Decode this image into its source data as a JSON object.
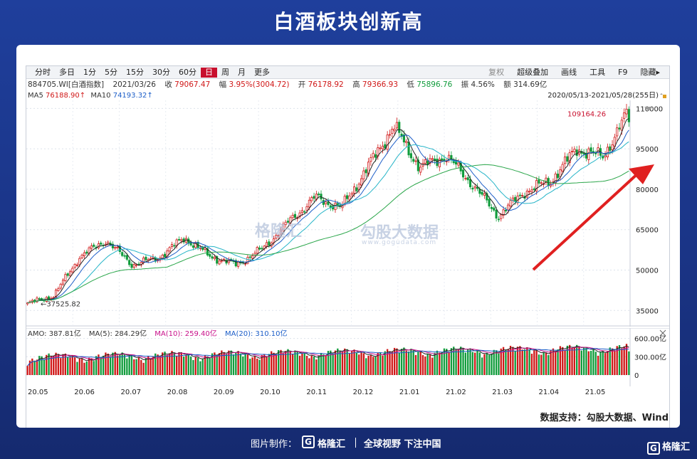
{
  "title": "白酒板块创新高",
  "toolbar": {
    "periods": [
      "分时",
      "多日",
      "1分",
      "5分",
      "15分",
      "30分",
      "60分",
      "日",
      "周",
      "月",
      "更多"
    ],
    "active_period": "日",
    "right_items": [
      "复权",
      "超级叠加",
      "画线",
      "工具",
      "F9",
      "隐藏"
    ]
  },
  "info": {
    "code": "884705.WI[白酒指数]",
    "date": "2021/03/26",
    "close_label": "收",
    "close": "79067.47",
    "change_label": "幅",
    "change": "3.95%(3004.72)",
    "open_label": "开",
    "open": "76178.92",
    "high_label": "高",
    "high": "79366.93",
    "low_label": "低",
    "low": "75896.76",
    "amp_label": "振",
    "amp": "4.56%",
    "amount_label": "额",
    "amount": "314.69亿"
  },
  "ma": {
    "ma5_label": "MA5",
    "ma5": "76188.90↑",
    "ma10_label": "MA10",
    "ma10": "74193.32↑"
  },
  "range": "2020/05/13-2021/05/28(255日)",
  "annotations": {
    "max": "109164.26",
    "min": "37525.82"
  },
  "volume_info": {
    "amo": "AMO: 387.81亿",
    "ma5": "MA(5): 284.29亿",
    "ma10": "MA(10): 259.40亿",
    "ma20": "MA(20): 310.10亿"
  },
  "watermarks": {
    "gelonghui": "格隆汇",
    "gogudata": "勾股大数据",
    "gogudata_url": "www.gogudata.com"
  },
  "source": "数据支持：勾股大数据、Wind",
  "footer": {
    "made_by": "图片制作：",
    "brand": "格隆汇",
    "slogan": "全球视野 下注中国",
    "logo_letter": "G"
  },
  "colors": {
    "up": "#d01818",
    "down": "#119c3c",
    "ma5": "#222222",
    "ma10": "#1c5ec8",
    "ma20": "#27b5c8",
    "ma60": "#2aa64a",
    "arrow": "#e02020"
  },
  "chart_data": {
    "type": "candlestick",
    "title": "",
    "y_ticks": [
      110000,
      95000,
      80000,
      65000,
      50000,
      35000
    ],
    "ylim": [
      29000,
      113000
    ],
    "x_ticks": [
      "20.05",
      "20.06",
      "20.07",
      "20.08",
      "20.09",
      "20.10",
      "20.11",
      "20.12",
      "21.01",
      "21.02",
      "21.03",
      "21.04",
      "21.05"
    ],
    "close_path": [
      [
        "20.05",
        37525
      ],
      [
        "20.06",
        40500
      ],
      [
        "20.07",
        55000
      ],
      [
        "20.07b",
        61000
      ],
      [
        "20.08",
        52000
      ],
      [
        "20.08b",
        54500
      ],
      [
        "20.09",
        62000
      ],
      [
        "20.09b",
        55000
      ],
      [
        "20.10",
        52000
      ],
      [
        "20.10b",
        58000
      ],
      [
        "20.11",
        68000
      ],
      [
        "20.11b",
        77000
      ],
      [
        "20.12",
        73000
      ],
      [
        "20.12b",
        88000
      ],
      [
        "21.01",
        103500
      ],
      [
        "21.01b",
        88000
      ],
      [
        "21.02",
        92500
      ],
      [
        "21.02b",
        82000
      ],
      [
        "21.03",
        70000
      ],
      [
        "21.03b",
        79067
      ],
      [
        "21.04",
        83000
      ],
      [
        "21.04b",
        95000
      ],
      [
        "21.05",
        92000
      ],
      [
        "21.05b",
        109164
      ]
    ],
    "volume_ticks": [
      "600.00亿",
      "300.00亿",
      "0"
    ],
    "volume_ylim": [
      0,
      700
    ]
  }
}
